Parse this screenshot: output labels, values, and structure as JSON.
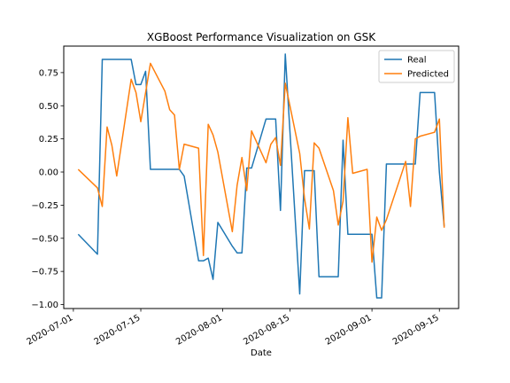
{
  "chart_data": {
    "type": "line",
    "title": "XGBoost Performance Visualization on GSK",
    "xlabel": "Date",
    "ylabel": "",
    "x_type": "date",
    "xlim": [
      "2020-06-29",
      "2020-09-19"
    ],
    "ylim": [
      -1.03,
      0.95
    ],
    "x_ticks": [
      "2020-07-01",
      "2020-07-15",
      "2020-08-01",
      "2020-08-15",
      "2020-09-01",
      "2020-09-15"
    ],
    "y_ticks": [
      -1.0,
      -0.75,
      -0.5,
      -0.25,
      0.0,
      0.25,
      0.5,
      0.75
    ],
    "y_tick_labels": [
      "−1.00",
      "−0.75",
      "−0.50",
      "−0.25",
      "0.00",
      "0.25",
      "0.50",
      "0.75"
    ],
    "grid": false,
    "legend": "top-right",
    "series": [
      {
        "name": "Real",
        "color": "#1f77b4",
        "points": [
          [
            "2020-07-02",
            -0.47
          ],
          [
            "2020-07-06",
            -0.62
          ],
          [
            "2020-07-07",
            0.85
          ],
          [
            "2020-07-08",
            0.85
          ],
          [
            "2020-07-09",
            0.85
          ],
          [
            "2020-07-10",
            0.85
          ],
          [
            "2020-07-13",
            0.85
          ],
          [
            "2020-07-14",
            0.66
          ],
          [
            "2020-07-15",
            0.66
          ],
          [
            "2020-07-16",
            0.76
          ],
          [
            "2020-07-17",
            0.02
          ],
          [
            "2020-07-20",
            0.02
          ],
          [
            "2020-07-21",
            0.02
          ],
          [
            "2020-07-22",
            0.02
          ],
          [
            "2020-07-23",
            0.02
          ],
          [
            "2020-07-24",
            -0.03
          ],
          [
            "2020-07-27",
            -0.67
          ],
          [
            "2020-07-28",
            -0.67
          ],
          [
            "2020-07-29",
            -0.65
          ],
          [
            "2020-07-30",
            -0.81
          ],
          [
            "2020-07-31",
            -0.38
          ],
          [
            "2020-08-03",
            -0.56
          ],
          [
            "2020-08-04",
            -0.61
          ],
          [
            "2020-08-05",
            -0.61
          ],
          [
            "2020-08-06",
            0.03
          ],
          [
            "2020-08-07",
            0.03
          ],
          [
            "2020-08-10",
            0.4
          ],
          [
            "2020-08-11",
            0.4
          ],
          [
            "2020-08-12",
            0.4
          ],
          [
            "2020-08-13",
            -0.29
          ],
          [
            "2020-08-14",
            0.89
          ],
          [
            "2020-08-17",
            -0.92
          ],
          [
            "2020-08-18",
            0.01
          ],
          [
            "2020-08-19",
            0.01
          ],
          [
            "2020-08-20",
            0.01
          ],
          [
            "2020-08-21",
            -0.79
          ],
          [
            "2020-08-24",
            -0.79
          ],
          [
            "2020-08-25",
            -0.79
          ],
          [
            "2020-08-26",
            0.24
          ],
          [
            "2020-08-27",
            -0.47
          ],
          [
            "2020-08-28",
            -0.47
          ],
          [
            "2020-08-31",
            -0.47
          ],
          [
            "2020-09-01",
            -0.47
          ],
          [
            "2020-09-02",
            -0.95
          ],
          [
            "2020-09-03",
            -0.95
          ],
          [
            "2020-09-04",
            0.06
          ],
          [
            "2020-09-08",
            0.06
          ],
          [
            "2020-09-09",
            0.06
          ],
          [
            "2020-09-10",
            0.06
          ],
          [
            "2020-09-11",
            0.6
          ],
          [
            "2020-09-14",
            0.6
          ],
          [
            "2020-09-15",
            0.0
          ],
          [
            "2020-09-16",
            -0.41
          ]
        ]
      },
      {
        "name": "Predicted",
        "color": "#ff7f0e",
        "points": [
          [
            "2020-07-02",
            0.02
          ],
          [
            "2020-07-06",
            -0.12
          ],
          [
            "2020-07-07",
            -0.26
          ],
          [
            "2020-07-08",
            0.34
          ],
          [
            "2020-07-09",
            0.2
          ],
          [
            "2020-07-10",
            -0.03
          ],
          [
            "2020-07-13",
            0.7
          ],
          [
            "2020-07-14",
            0.6
          ],
          [
            "2020-07-15",
            0.38
          ],
          [
            "2020-07-16",
            0.6
          ],
          [
            "2020-07-17",
            0.82
          ],
          [
            "2020-07-20",
            0.61
          ],
          [
            "2020-07-21",
            0.47
          ],
          [
            "2020-07-22",
            0.43
          ],
          [
            "2020-07-23",
            0.02
          ],
          [
            "2020-07-24",
            0.21
          ],
          [
            "2020-07-27",
            0.18
          ],
          [
            "2020-07-28",
            -0.63
          ],
          [
            "2020-07-29",
            0.36
          ],
          [
            "2020-07-30",
            0.28
          ],
          [
            "2020-07-31",
            0.15
          ],
          [
            "2020-08-03",
            -0.45
          ],
          [
            "2020-08-04",
            -0.1
          ],
          [
            "2020-08-05",
            0.11
          ],
          [
            "2020-08-06",
            -0.14
          ],
          [
            "2020-08-07",
            0.31
          ],
          [
            "2020-08-10",
            0.07
          ],
          [
            "2020-08-11",
            0.21
          ],
          [
            "2020-08-12",
            0.26
          ],
          [
            "2020-08-13",
            0.05
          ],
          [
            "2020-08-14",
            0.67
          ],
          [
            "2020-08-17",
            0.14
          ],
          [
            "2020-08-18",
            -0.2
          ],
          [
            "2020-08-19",
            -0.43
          ],
          [
            "2020-08-20",
            0.22
          ],
          [
            "2020-08-21",
            0.18
          ],
          [
            "2020-08-24",
            -0.14
          ],
          [
            "2020-08-25",
            -0.4
          ],
          [
            "2020-08-26",
            -0.22
          ],
          [
            "2020-08-27",
            0.41
          ],
          [
            "2020-08-28",
            -0.01
          ],
          [
            "2020-08-31",
            0.02
          ],
          [
            "2020-09-01",
            -0.68
          ],
          [
            "2020-09-02",
            -0.34
          ],
          [
            "2020-09-03",
            -0.44
          ],
          [
            "2020-09-04",
            -0.36
          ],
          [
            "2020-09-08",
            0.08
          ],
          [
            "2020-09-09",
            -0.26
          ],
          [
            "2020-09-10",
            0.25
          ],
          [
            "2020-09-11",
            0.27
          ],
          [
            "2020-09-14",
            0.3
          ],
          [
            "2020-09-15",
            0.4
          ],
          [
            "2020-09-16",
            -0.42
          ]
        ]
      }
    ]
  }
}
